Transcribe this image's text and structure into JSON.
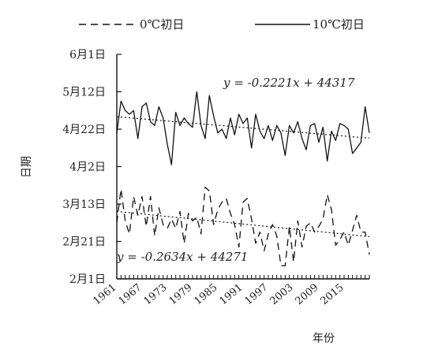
{
  "chart_data": {
    "type": "line",
    "xlabel": "年份",
    "ylabel": "日期",
    "xlim": [
      1961,
      2021
    ],
    "ylim": [
      "2月1日",
      "6月1日"
    ],
    "x_ticks": [
      "1961",
      "1967",
      "1973",
      "1979",
      "1985",
      "1991",
      "1997",
      "2003",
      "2009",
      "2015"
    ],
    "y_ticks": [
      "2月1日",
      "2月21日",
      "3月13日",
      "4月2日",
      "4月22日",
      "5月12日",
      "6月1日"
    ],
    "legend": {
      "placement": "top",
      "entries": [
        "0℃初日",
        "10℃初日"
      ]
    },
    "grid": false,
    "x": [
      1961,
      1962,
      1963,
      1964,
      1965,
      1966,
      1967,
      1968,
      1969,
      1970,
      1971,
      1972,
      1973,
      1974,
      1975,
      1976,
      1977,
      1978,
      1979,
      1980,
      1981,
      1982,
      1983,
      1984,
      1985,
      1986,
      1987,
      1988,
      1989,
      1990,
      1991,
      1992,
      1993,
      1994,
      1995,
      1996,
      1997,
      1998,
      1999,
      2000,
      2001,
      2002,
      2003,
      2004,
      2005,
      2006,
      2007,
      2008,
      2009,
      2010,
      2011,
      2012,
      2013,
      2014,
      2015,
      2016,
      2017,
      2018,
      2019,
      2020,
      2021
    ],
    "series": [
      {
        "name": "0℃初日",
        "style": "dashed",
        "values": [
          "3月3日",
          "3月21日",
          "3月4日",
          "2月25日",
          "3月17日",
          "3月7日",
          "3月17日",
          "3月1日",
          "3月17日",
          "2月24日",
          "3月11日",
          "3月2日",
          "2月28日",
          "3月5日",
          "2月28日",
          "3月9日",
          "2月20日",
          "3月8日",
          "3月4日",
          "3月6日",
          "2月25日",
          "3月22日",
          "3月20日",
          "3月2日",
          "3月10日",
          "3月14日",
          "3月16日",
          "3月8日",
          "3月2日",
          "2月18日",
          "3月14日",
          "3月16日",
          "3月5日",
          "2月20日",
          "2月26日",
          "2月16日",
          "2月25日",
          "3月2日",
          "2月24日",
          "2月8日",
          "2月8日",
          "3月1日",
          "2月10日",
          "3月4日",
          "2月18日",
          "3月1日",
          "3月3日",
          "2月26日",
          "3月1日",
          "3月5日",
          "3月18日",
          "3月10日",
          "2月19日",
          "2月22日",
          "2月26日",
          "2月19日",
          "2月27日",
          "3月7日",
          "2月26日",
          "2月26日",
          "2月14日"
        ]
      },
      {
        "name": "10℃初日",
        "style": "solid",
        "values": [
          "4月20日",
          "5月7日",
          "5月2日",
          "4月30日",
          "5月2日",
          "4月17日",
          "5月4日",
          "5月6日",
          "4月26日",
          "4月24日",
          "5月4日",
          "4月28日",
          "4月14日",
          "4月3日",
          "5月1日",
          "4月24日",
          "4月28日",
          "4月25日",
          "4月23日",
          "5月12日",
          "4月24日",
          "4月17日",
          "5月10日",
          "4月29日",
          "4月20日",
          "4月22日",
          "4月17日",
          "4月28日",
          "4月19日",
          "4月30日",
          "4月25日",
          "4月28日",
          "4月12日",
          "4月30日",
          "4月21日",
          "4月17日",
          "4月24日",
          "4月16日",
          "4月24日",
          "4月20日",
          "4月8日",
          "4月24日",
          "4月20日",
          "4月26日",
          "4月17日",
          "4月11日",
          "4月24日",
          "4月25日",
          "4月15日",
          "4月23日",
          "4月5日",
          "4月21日",
          "4月16日",
          "4月25日",
          "4月24日",
          "4月22日",
          "4月9日",
          "4月12日",
          "4月15日",
          "5月4日",
          "4月20日"
        ]
      }
    ],
    "trendlines": [
      {
        "series": "10℃初日",
        "equation": "y = -0.2221x + 44317",
        "slope": -0.2221,
        "intercept": 44317,
        "style": "dotted"
      },
      {
        "series": "0℃初日",
        "equation": "y = -0.2634x + 44271",
        "slope": -0.2634,
        "intercept": 44271,
        "style": "dotted"
      }
    ]
  }
}
